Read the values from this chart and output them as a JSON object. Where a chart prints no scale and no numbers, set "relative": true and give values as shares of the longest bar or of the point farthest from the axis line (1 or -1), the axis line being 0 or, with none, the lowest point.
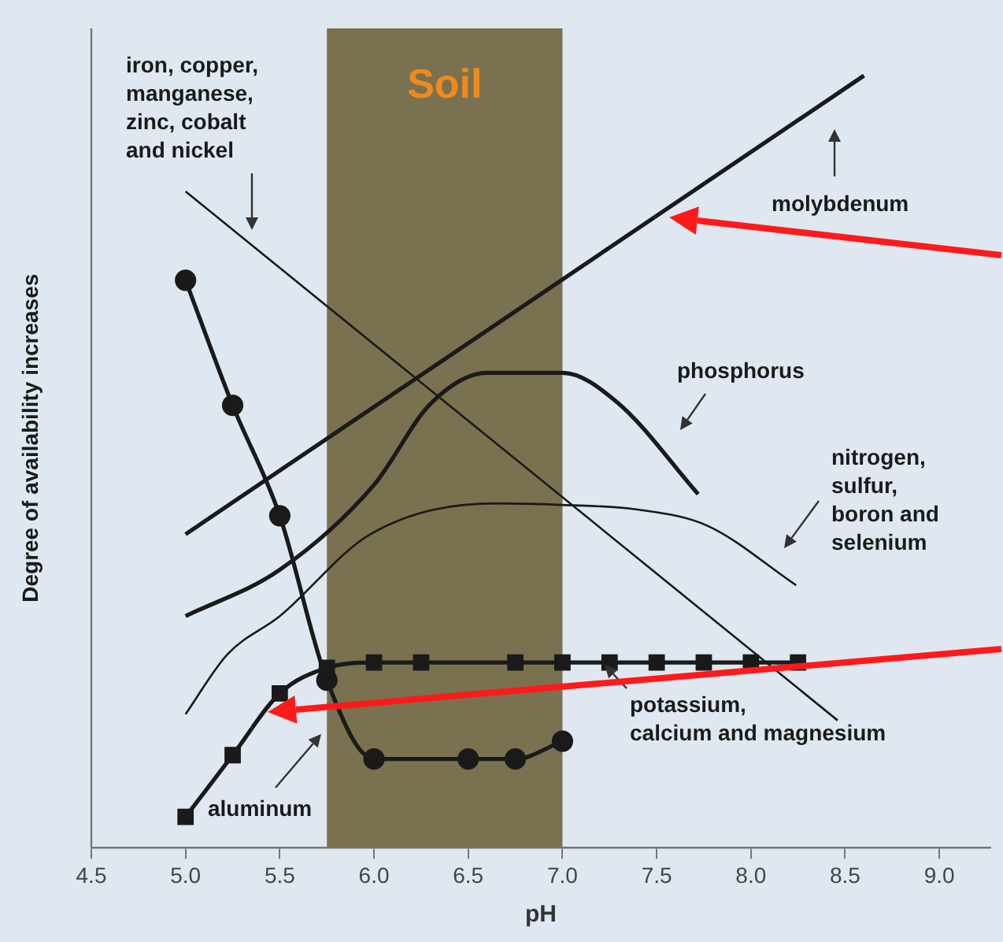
{
  "chart_data": {
    "type": "line",
    "relative": true,
    "xlabel": "pH",
    "ylabel": "Degree of availability increases",
    "xlim": [
      4.5,
      9.27
    ],
    "xticks": [
      {
        "value": 4.5,
        "label": "4.5"
      },
      {
        "value": 5,
        "label": "5.0"
      },
      {
        "value": 5.5,
        "label": "5.5"
      },
      {
        "value": 6,
        "label": "6.0"
      },
      {
        "value": 6.5,
        "label": "6.5"
      },
      {
        "value": 7,
        "label": "7.0"
      },
      {
        "value": 7.5,
        "label": "7.5"
      },
      {
        "value": 8,
        "label": "8.0"
      },
      {
        "value": 8.5,
        "label": "8.5"
      },
      {
        "value": 9,
        "label": "9.0"
      }
    ],
    "grid": false,
    "legend": false,
    "line_style": "solid",
    "bands": [
      {
        "axis": "x",
        "from": 5.75,
        "to": 7.0,
        "label": "Soil",
        "color": "#7a7150"
      }
    ],
    "series": [
      {
        "name": "molybdenum",
        "color": "#1a1a1a",
        "marker": "none",
        "x": [
          5.0,
          8.6
        ],
        "values": [
          0.406,
          1.0
        ]
      },
      {
        "name": "iron, copper,\nmanganese,\nzinc, cobalt\nand nickel",
        "color": "#1a1a1a",
        "marker": "none",
        "x": [
          5.0,
          8.46
        ],
        "values": [
          0.85,
          0.165
        ]
      },
      {
        "name": "phosphorus",
        "color": "#1a1a1a",
        "marker": "none",
        "x": [
          5.0,
          5.5,
          6.0,
          6.3,
          6.6,
          7.0,
          7.29,
          7.72
        ],
        "values": [
          0.3,
          0.36,
          0.47,
          0.575,
          0.615,
          0.615,
          0.577,
          0.458
        ]
      },
      {
        "name": "nitrogen,\nsulfur,\nboron and\nselenium",
        "color": "#1a1a1a",
        "marker": "none",
        "x": [
          5.0,
          5.22,
          5.5,
          5.98,
          6.65,
          7.0,
          7.4,
          7.77,
          8.24
        ],
        "values": [
          0.173,
          0.25,
          0.3,
          0.406,
          0.446,
          0.444,
          0.438,
          0.417,
          0.34
        ]
      },
      {
        "name": "potassium,\ncalcium and magnesium",
        "color": "#1a1a1a",
        "marker": "square",
        "x": [
          5.0,
          5.25,
          5.5,
          5.75,
          6.0,
          6.25,
          6.75,
          7.0,
          7.25,
          7.5,
          7.75,
          8.0,
          8.25
        ],
        "values": [
          0.04,
          0.12,
          0.2,
          0.233,
          0.24,
          0.24,
          0.24,
          0.24,
          0.24,
          0.24,
          0.24,
          0.24,
          0.24
        ]
      },
      {
        "name": "aluminum",
        "color": "#1a1a1a",
        "marker": "circle",
        "x": [
          5.0,
          5.25,
          5.5,
          5.75,
          6.0,
          6.5,
          6.75,
          7.0
        ],
        "values": [
          0.735,
          0.573,
          0.43,
          0.217,
          0.115,
          0.115,
          0.115,
          0.138
        ]
      }
    ]
  }
}
